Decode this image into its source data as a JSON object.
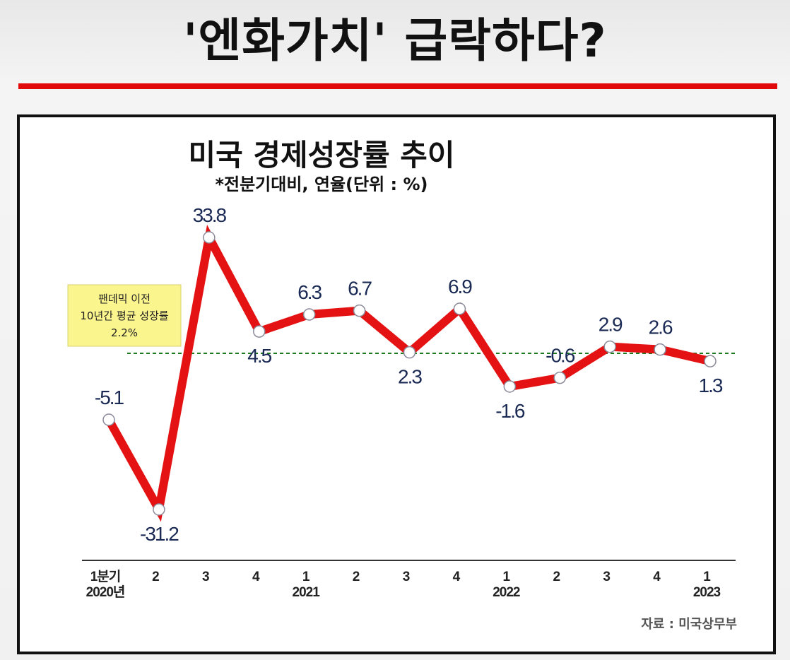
{
  "headline": "'엔화가치' 급락하다?",
  "colors": {
    "line": "#e41212",
    "accent_bar": "#e10a0a",
    "label": "#1a2a55",
    "note_bg": "#fbf58e",
    "ref_line": "#1e7a1e"
  },
  "chart_data": {
    "type": "line",
    "title": "미국 경제성장률 추이",
    "subtitle": "*전분기대비, 연율(단위 : %)",
    "categories": [
      "1분기",
      "2",
      "3",
      "4",
      "1",
      "2",
      "3",
      "4",
      "1",
      "2",
      "3",
      "4",
      "1"
    ],
    "year_labels": [
      "2020년",
      "",
      "",
      "",
      "2021",
      "",
      "",
      "",
      "2022",
      "",
      "",
      "",
      "2023"
    ],
    "series": [
      {
        "values": [
          -5.1,
          -31.2,
          33.8,
          4.5,
          6.3,
          6.7,
          2.3,
          6.9,
          -1.6,
          -0.6,
          2.9,
          2.6,
          1.3
        ]
      }
    ],
    "value_labels": [
      "-5.1",
      "-31.2",
      "33.8",
      "4.5",
      "6.3",
      "6.7",
      "2.3",
      "6.9",
      "-1.6",
      "-0.6",
      "2.9",
      "2.6",
      "1.3"
    ],
    "reference_line": {
      "value": 2.2,
      "note_lines": [
        "팬데믹 이전",
        "10년간 평균 성장률",
        "2.2%"
      ]
    },
    "source": "자료 : 미국상무부",
    "grid": false,
    "legend": "none"
  }
}
